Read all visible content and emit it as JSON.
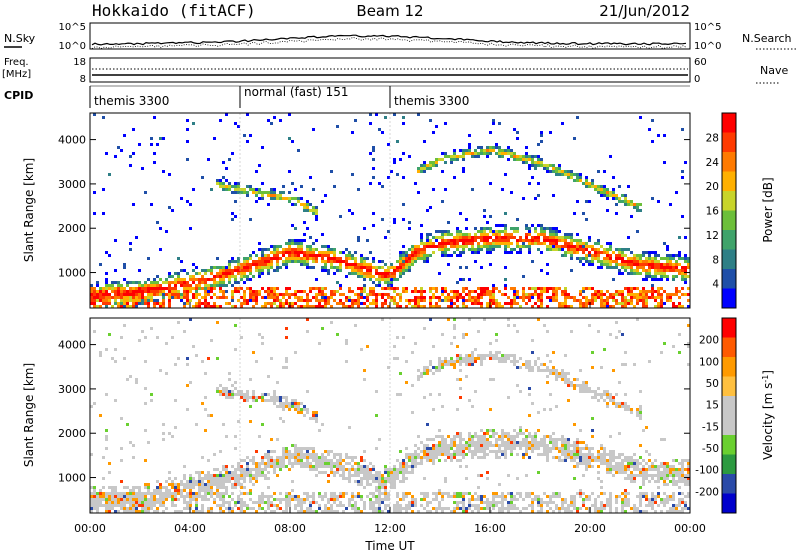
{
  "header": {
    "station": "Hokkaido (fitACF)",
    "beam": "Beam 12",
    "date": "21/Jun/2012"
  },
  "summary_panels": {
    "nsky_label": "N.Sky",
    "nsky_ticks": [
      "10^5",
      "10^0"
    ],
    "nsearch_label": "N.Search",
    "freq_label_1": "Freq.",
    "freq_label_2": "[MHz]",
    "freq_ticks": [
      "18",
      "8"
    ],
    "nave_label": "Nave",
    "nave_ticks": [
      "60",
      "0"
    ],
    "cpid_label": "CPID",
    "cpid_segments": [
      {
        "start_hour": 0,
        "end_hour": 6,
        "label": "themis 3300"
      },
      {
        "start_hour": 6,
        "end_hour": 12,
        "label": "normal (fast) 151"
      },
      {
        "start_hour": 12,
        "end_hour": 24,
        "label": "themis 3300"
      }
    ]
  },
  "chart_data": [
    {
      "type": "heatmap",
      "name": "power",
      "ylabel": "Slant Range [km]",
      "ylim": [
        200,
        4600
      ],
      "yticks": [
        1000,
        2000,
        3000,
        4000
      ],
      "xlim": [
        0,
        24
      ],
      "colorbar_label": "Power [dB]",
      "colorbar_ticks": [
        "28",
        "24",
        "20",
        "16",
        "12",
        "8",
        "4"
      ],
      "colorbar_colors": [
        "#0000ff",
        "#1f4fa8",
        "#2e7f86",
        "#3fa36a",
        "#6cbf3a",
        "#c8d42a",
        "#ffb000",
        "#ff7a00",
        "#ff3a00",
        "#ff0000"
      ],
      "structure": [
        {
          "feature": "main band",
          "times": [
            0,
            2,
            4,
            6,
            8,
            10,
            11.5,
            12,
            13,
            14,
            16,
            18,
            20,
            22,
            24
          ],
          "range_km": [
            500,
            600,
            800,
            1100,
            1500,
            1300,
            1000,
            1000,
            1500,
            1700,
            1800,
            1800,
            1500,
            1200,
            1100
          ]
        },
        {
          "feature": "upper band",
          "times": [
            5,
            6,
            8,
            9
          ],
          "range_km": [
            3000,
            2900,
            2700,
            2400
          ]
        },
        {
          "feature": "upper band",
          "times": [
            13,
            14,
            16,
            18,
            20,
            22
          ],
          "range_km": [
            3300,
            3600,
            3800,
            3500,
            3000,
            2500
          ]
        }
      ]
    },
    {
      "type": "heatmap",
      "name": "velocity",
      "ylabel": "Slant Range [km]",
      "ylim": [
        200,
        4600
      ],
      "yticks": [
        1000,
        2000,
        3000,
        4000
      ],
      "xlim": [
        0,
        24
      ],
      "xlabel": "Time UT",
      "xticks": [
        "00:00",
        "04:00",
        "08:00",
        "12:00",
        "16:00",
        "20:00",
        "00:00"
      ],
      "colorbar_label": "Velocity [m s^-1]",
      "colorbar_ticks": [
        "200",
        "100",
        "50",
        "15",
        "-15",
        "-50",
        "-100",
        "-200"
      ],
      "colorbar_colors": [
        "#ff0000",
        "#ff5a00",
        "#ff9a00",
        "#ffc040",
        "#c8c8c8",
        "#c8c8c8",
        "#6ad030",
        "#2c9a40",
        "#2a4aa8",
        "#0000cc"
      ]
    }
  ]
}
